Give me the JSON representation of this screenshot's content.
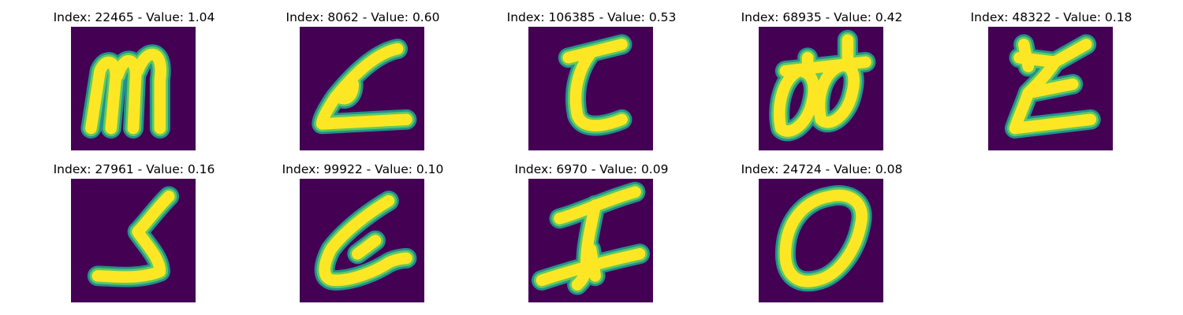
{
  "colors": {
    "background": "#440154",
    "stroke_outer": "#21918c",
    "stroke_mid": "#5ec962",
    "stroke_core": "#fde725"
  },
  "panels": [
    {
      "title": "Index: 22465 - Value: 1.04"
    },
    {
      "title": "Index: 8062 - Value: 0.60"
    },
    {
      "title": "Index: 106385 - Value: 0.53"
    },
    {
      "title": "Index: 68935 - Value: 0.42"
    },
    {
      "title": "Index: 48322 - Value: 0.18"
    },
    {
      "title": "Index: 27961 - Value: 0.16"
    },
    {
      "title": "Index: 99922 - Value: 0.10"
    },
    {
      "title": "Index: 6970 - Value: 0.09"
    },
    {
      "title": "Index: 24724 - Value: 0.08"
    }
  ]
}
